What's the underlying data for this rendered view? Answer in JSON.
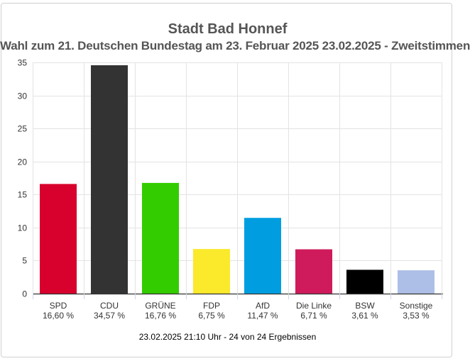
{
  "chart_data": {
    "type": "bar",
    "title": "Stadt Bad Honnef",
    "subtitle": "Wahl zum 21. Deutschen Bundestag am 23. Februar 2025 23.02.2025  - Zweitstimmen",
    "categories": [
      "SPD",
      "CDU",
      "GRÜNE",
      "FDP",
      "AfD",
      "Die Linke",
      "BSW",
      "Sonstige"
    ],
    "values": [
      16.6,
      34.57,
      16.76,
      6.75,
      11.47,
      6.71,
      3.61,
      3.53
    ],
    "value_labels": [
      "16,60 %",
      "34,57 %",
      "16,76 %",
      "6,75 %",
      "11,47 %",
      "6,71 %",
      "3,61 %",
      "3,53 %"
    ],
    "colors": [
      "#d8002c",
      "#333333",
      "#33cc00",
      "#fbe92c",
      "#009ee0",
      "#cf1b5b",
      "#000000",
      "#adbfe6"
    ],
    "ylim": [
      0,
      35
    ],
    "yticks": [
      0,
      5,
      10,
      15,
      20,
      25,
      30,
      35
    ],
    "xlabel": "",
    "ylabel": "",
    "grid": true,
    "footer": "23.02.2025 21:10 Uhr - 24 von 24 Ergebnissen"
  }
}
